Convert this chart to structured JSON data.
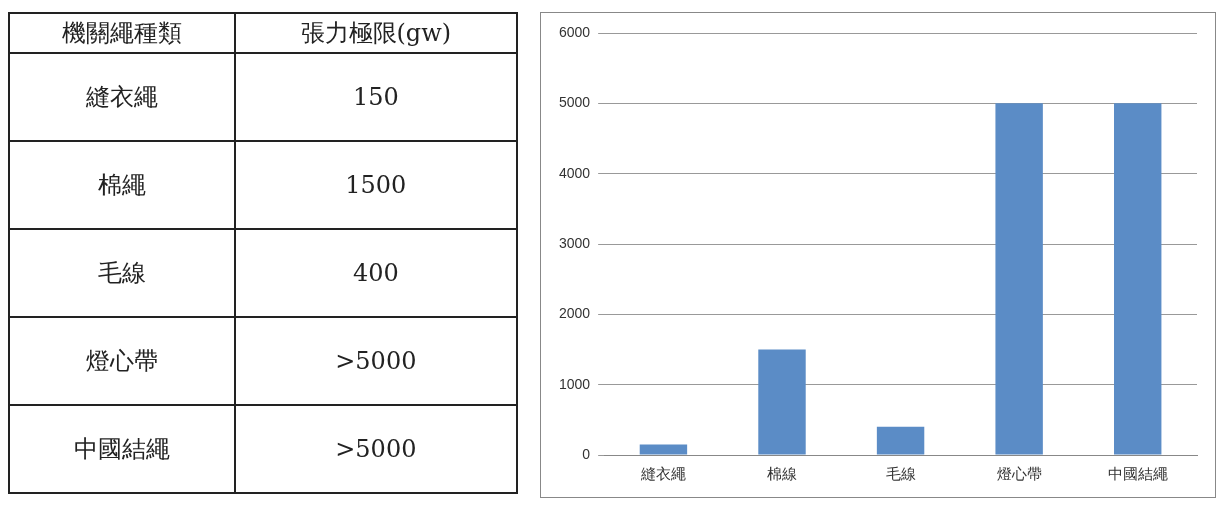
{
  "chart_data": [
    {
      "type": "other",
      "annotations": [
        "機關繩種類",
        "張力極限(gw)",
        "縫衣繩",
        "150",
        "棉繩",
        "1500",
        "毛線",
        "400",
        "燈心帶",
        ">5000",
        "中國結繩",
        ">5000"
      ]
    },
    {
      "type": "bar",
      "categories": [
        "縫衣繩",
        "棉線",
        "毛線",
        "燈心帶",
        "中國結繩"
      ],
      "values": [
        150,
        1500,
        400,
        5000,
        5000
      ],
      "color": "#5b8cc6",
      "ylim": [
        0,
        6000
      ],
      "yticks": [
        0,
        1000,
        2000,
        3000,
        4000,
        5000,
        6000
      ],
      "grid": "y"
    }
  ]
}
